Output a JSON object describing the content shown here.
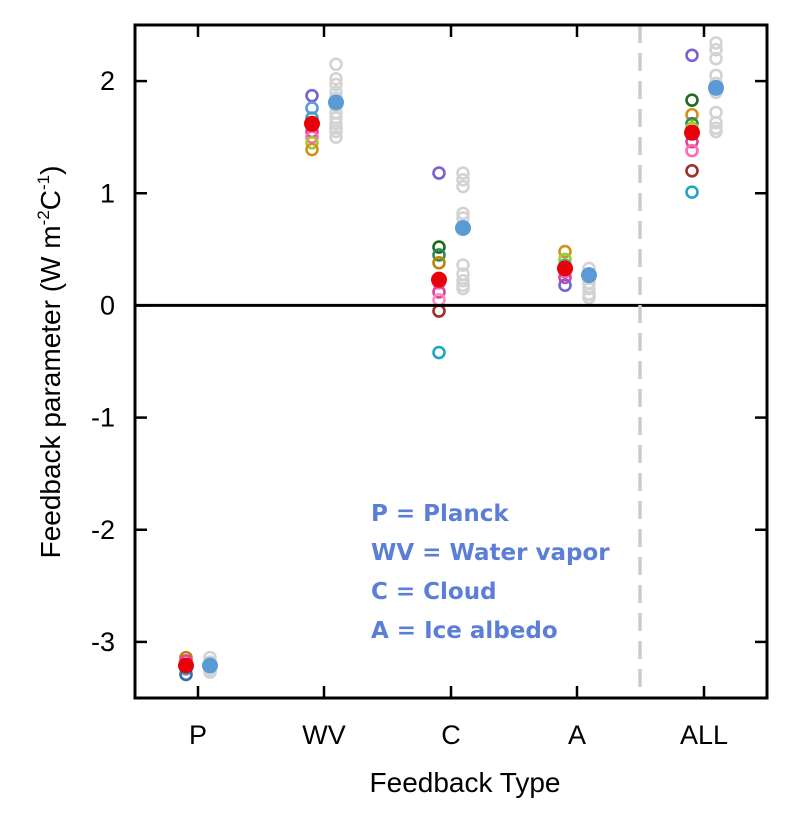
{
  "chart_data": {
    "type": "scatter",
    "ylabel_main": "Feedback parameter (W m",
    "ylabel_sup1": "-2",
    "ylabel_mid": "C",
    "ylabel_sup2": "-1",
    "ylabel_end": ")",
    "xlabel": "Feedback Type",
    "categories": [
      "P",
      "WV",
      "C",
      "A",
      "ALL"
    ],
    "ylim": [
      -3.5,
      2.5
    ],
    "yticks": [
      -3,
      -2,
      -1,
      0,
      1,
      2
    ],
    "ytick_labels": [
      "-3",
      "-2",
      "-1",
      "0",
      "1",
      "2"
    ],
    "zero_line": true,
    "separator_between": [
      "A",
      "ALL"
    ],
    "legend": [
      "P = Planck",
      "WV = Water vapor",
      "C = Cloud",
      "A = Ice albedo"
    ],
    "colors": {
      "gray_ring": "#d3d3d3",
      "mean_blue": "#5b9bd5",
      "mean_red": "#e8000a",
      "legend_text": "#5b7fd6",
      "separator": "#cccccc"
    },
    "gray_models": {
      "P": [
        -3.14,
        -3.18,
        -3.22,
        -3.25,
        -3.27
      ],
      "WV": [
        2.15,
        2.02,
        1.97,
        1.9,
        1.85,
        1.78,
        1.72,
        1.67,
        1.62,
        1.58,
        1.55,
        1.5
      ],
      "C": [
        1.18,
        1.12,
        1.06,
        0.82,
        0.78,
        0.36,
        0.28,
        0.22,
        0.18,
        0.15
      ],
      "A": [
        0.33,
        0.28,
        0.24,
        0.2,
        0.15,
        0.1,
        0.07
      ],
      "ALL": [
        2.34,
        2.28,
        2.2,
        2.05,
        1.98,
        1.9,
        1.72,
        1.63,
        1.58,
        1.55
      ]
    },
    "gray_mean": {
      "P": -3.21,
      "WV": 1.81,
      "C": 0.69,
      "A": 0.27,
      "ALL": 1.94
    },
    "colored_models": {
      "P": [
        {
          "v": -3.14,
          "c": "#b8860b"
        },
        {
          "v": -3.17,
          "c": "#e040a0"
        },
        {
          "v": -3.2,
          "c": "#7b61cf"
        },
        {
          "v": -3.24,
          "c": "#40a0c0"
        },
        {
          "v": -3.29,
          "c": "#3a6aa8"
        }
      ],
      "WV": [
        {
          "v": 1.87,
          "c": "#7b61cf"
        },
        {
          "v": 1.76,
          "c": "#5b9bd5"
        },
        {
          "v": 1.67,
          "c": "#40a0c0"
        },
        {
          "v": 1.6,
          "c": "#2e8b57"
        },
        {
          "v": 1.55,
          "c": "#e040a0"
        },
        {
          "v": 1.5,
          "c": "#ff69b4"
        },
        {
          "v": 1.45,
          "c": "#9acd32"
        },
        {
          "v": 1.39,
          "c": "#d2911f"
        }
      ],
      "C": [
        {
          "v": 1.18,
          "c": "#7b61cf"
        },
        {
          "v": 0.52,
          "c": "#1e6b1e"
        },
        {
          "v": 0.45,
          "c": "#2e8b57"
        },
        {
          "v": 0.38,
          "c": "#b8860b"
        },
        {
          "v": 0.2,
          "c": "#ff69b4"
        },
        {
          "v": 0.12,
          "c": "#e040a0"
        },
        {
          "v": 0.05,
          "c": "#ff8cc6"
        },
        {
          "v": -0.05,
          "c": "#a0302a"
        },
        {
          "v": -0.42,
          "c": "#1fa6c7"
        }
      ],
      "A": [
        {
          "v": 0.48,
          "c": "#d2911f"
        },
        {
          "v": 0.41,
          "c": "#9acd32"
        },
        {
          "v": 0.36,
          "c": "#40c0a0"
        },
        {
          "v": 0.3,
          "c": "#ff69b4"
        },
        {
          "v": 0.25,
          "c": "#e040a0"
        },
        {
          "v": 0.18,
          "c": "#7b61cf"
        }
      ],
      "ALL": [
        {
          "v": 2.23,
          "c": "#7b61cf"
        },
        {
          "v": 1.83,
          "c": "#1e6b1e"
        },
        {
          "v": 1.7,
          "c": "#d2911f"
        },
        {
          "v": 1.62,
          "c": "#2e8b57"
        },
        {
          "v": 1.58,
          "c": "#9acd32"
        },
        {
          "v": 1.46,
          "c": "#e040a0"
        },
        {
          "v": 1.38,
          "c": "#ff69b4"
        },
        {
          "v": 1.2,
          "c": "#a0302a"
        },
        {
          "v": 1.01,
          "c": "#1fa6c7"
        }
      ]
    },
    "colored_mean": {
      "P": -3.21,
      "WV": 1.62,
      "C": 0.23,
      "A": 0.33,
      "ALL": 1.54
    }
  }
}
